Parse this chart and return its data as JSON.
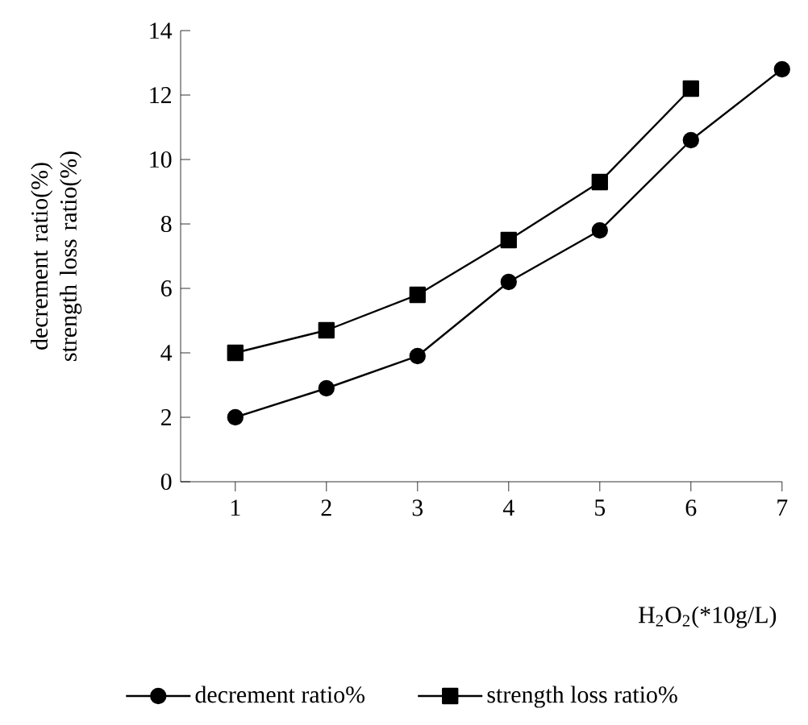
{
  "chart_data": {
    "type": "line",
    "xlabel": "H$_{2}$O$_{2}$(*10g/L)",
    "ylabel": "decrement ratio(%) strength loss ratio(%)",
    "x": [
      1,
      2,
      3,
      4,
      5,
      6,
      7
    ],
    "series": [
      {
        "name": "decrement ratio%",
        "color": "#000000",
        "marker": "circle",
        "values": [
          2.0,
          2.9,
          3.9,
          6.2,
          7.8,
          10.6,
          12.8
        ]
      },
      {
        "name": "strength loss ratio%",
        "color": "#000000",
        "marker": "square",
        "values": [
          4.0,
          4.7,
          5.8,
          7.5,
          9.3,
          12.2,
          null
        ]
      }
    ],
    "xlim": [
      0.4,
      7
    ],
    "ylim": [
      0,
      14
    ],
    "xticks": [
      1,
      2,
      3,
      4,
      5,
      6,
      7
    ],
    "yticks": [
      0,
      2,
      4,
      6,
      8,
      10,
      12,
      14
    ],
    "grid": false,
    "legend": "bottom",
    "line_style": "solid"
  }
}
